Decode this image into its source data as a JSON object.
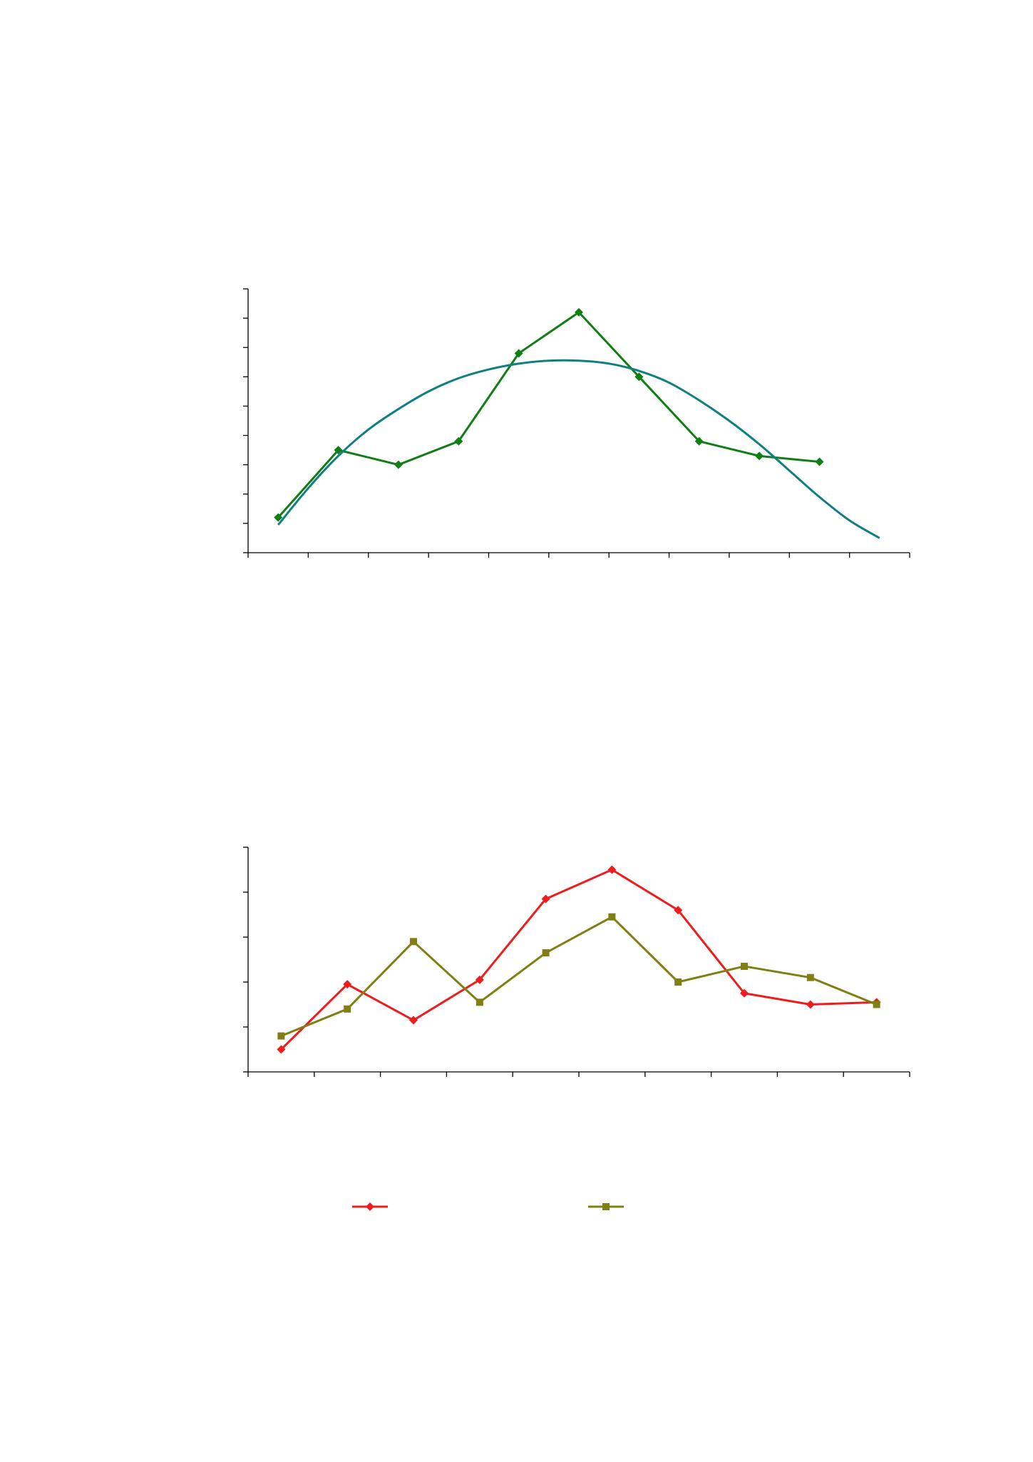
{
  "colors": {
    "axis": "#000000",
    "observed_green": "#0f7f14",
    "fit_teal": "#0f8080",
    "red": "#ee1c1c",
    "olive": "#808012"
  },
  "chart_data": [
    {
      "type": "line",
      "title": "",
      "xlabel": "",
      "ylabel": "",
      "x_category_count": 11,
      "y_tick_count": 9,
      "grid": false,
      "ylim": [
        0,
        9
      ],
      "series": [
        {
          "marker": "diamond",
          "color": "#0f7f14",
          "values": [
            1.2,
            3.5,
            3.0,
            3.8,
            6.8,
            8.2,
            6.0,
            3.8,
            3.3,
            3.1
          ]
        },
        {
          "marker": "none",
          "smooth": true,
          "color": "#0f8080",
          "x": [
            0.0,
            0.5,
            1.0,
            1.5,
            2.0,
            2.5,
            3.0,
            3.5,
            4.0,
            4.5,
            5.0,
            5.5,
            6.0,
            6.5,
            7.0,
            7.5,
            8.0,
            8.5,
            9.0,
            9.5,
            10.0
          ],
          "values": [
            0.95,
            2.2,
            3.3,
            4.2,
            4.9,
            5.5,
            5.95,
            6.25,
            6.45,
            6.55,
            6.55,
            6.45,
            6.2,
            5.8,
            5.2,
            4.5,
            3.7,
            2.8,
            1.9,
            1.1,
            0.5
          ]
        }
      ]
    },
    {
      "type": "line",
      "title": "",
      "xlabel": "",
      "ylabel": "",
      "x_category_count": 10,
      "y_tick_count": 5,
      "grid": false,
      "ylim": [
        0,
        5
      ],
      "legend_position": "bottom",
      "series": [
        {
          "marker": "diamond",
          "color": "#ee1c1c",
          "values": [
            0.5,
            1.95,
            1.15,
            2.05,
            3.85,
            4.5,
            3.6,
            1.75,
            1.5,
            1.55
          ]
        },
        {
          "marker": "square",
          "color": "#808012",
          "values": [
            0.8,
            1.4,
            2.9,
            1.55,
            2.65,
            3.45,
            2.0,
            2.35,
            2.1,
            1.5
          ]
        }
      ]
    }
  ]
}
